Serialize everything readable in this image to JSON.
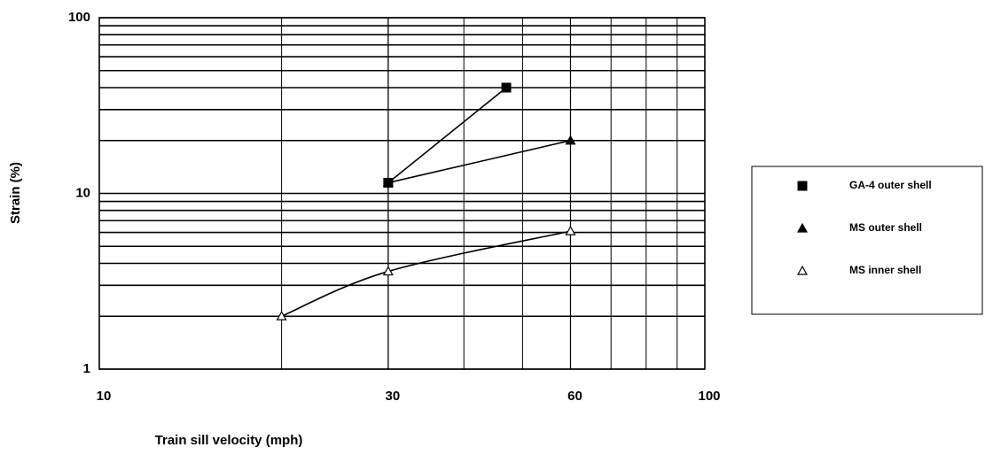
{
  "chart_data": {
    "type": "line",
    "x_label": "Train sill velocity (mph)",
    "y_label": "Strain (%)",
    "log_x": true,
    "log_y": true,
    "grid": true,
    "minor_grid": true,
    "xlim": [
      10,
      100
    ],
    "xticks": [
      10,
      30,
      60,
      100
    ],
    "ylim": [
      1,
      100
    ],
    "yticks": [
      1,
      10,
      100
    ],
    "legend": "right",
    "series": [
      {
        "name": "GA-4 outer shell",
        "color": "#000000",
        "marker": "square",
        "x": [
          30,
          47
        ],
        "values": [
          11.5,
          40
        ]
      },
      {
        "name": "MS outer shell",
        "color": "#000000",
        "marker": "triangle",
        "x": [
          30,
          60
        ],
        "values": [
          11.5,
          20
        ]
      },
      {
        "name": "MS inner shell",
        "color": "#000000",
        "marker": "open-triangle",
        "x": [
          20,
          30,
          60
        ],
        "values": [
          2,
          3.6,
          6.1
        ]
      }
    ]
  }
}
